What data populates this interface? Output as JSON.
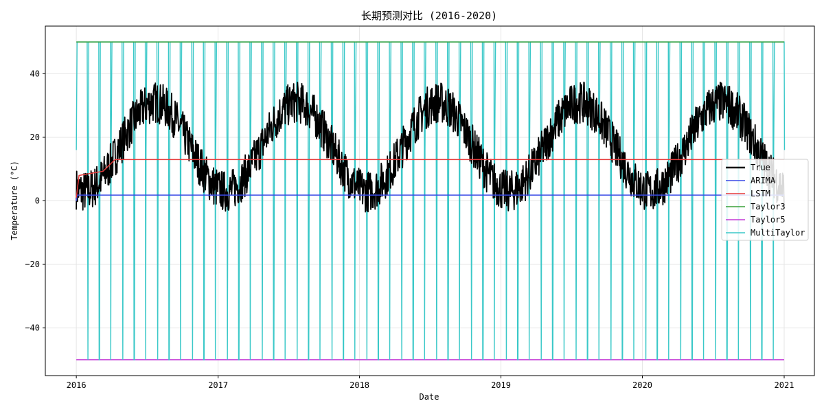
{
  "chart_data": {
    "type": "line",
    "title": "长期预测对比 (2016-2020)",
    "xlabel": "Date",
    "ylabel": "Temperature (°C)",
    "x_range": [
      "2016-01-01",
      "2021-01-01"
    ],
    "xlim": [
      "2015-10-13",
      "2021-03-20"
    ],
    "ylim": [
      -55,
      55
    ],
    "x_ticks": [
      "2016",
      "2017",
      "2018",
      "2019",
      "2020",
      "2021"
    ],
    "y_ticks": [
      -40,
      -20,
      0,
      20,
      40
    ],
    "grid": true,
    "legend_position": "right",
    "series": [
      {
        "name": "True",
        "color": "#000000",
        "description": "daily temperature, seasonal cycle",
        "approx_seasonal_min": [
          -10,
          -12,
          -10,
          -10,
          -8
        ],
        "approx_seasonal_max": [
          38,
          38,
          38,
          36,
          36
        ],
        "mean": 17,
        "amplitude": 14,
        "noise": 6
      },
      {
        "name": "ARIMA",
        "color": "#3a4ae6",
        "x": [
          "2016-01-01",
          "2016-01-03",
          "2021-01-01"
        ],
        "values": [
          0,
          1.8,
          1.8
        ]
      },
      {
        "name": "LSTM",
        "color": "#e63a3a",
        "x": [
          "2016-01-01",
          "2016-01-08",
          "2016-02-15",
          "2016-03-10",
          "2016-04-10",
          "2021-01-01"
        ],
        "values": [
          1,
          8,
          8.8,
          9.3,
          13,
          13
        ]
      },
      {
        "name": "Taylor3",
        "color": "#3aa03a",
        "values_constant": 50
      },
      {
        "name": "Taylor5",
        "color": "#c43ad6",
        "values_constant": -50
      },
      {
        "name": "MultiTaylor",
        "color": "#3ac8c8",
        "description": "oscillates between 50 and a low value each cycle",
        "high": 50,
        "low_values": [
          16,
          -50
        ],
        "period_days": 30
      }
    ]
  }
}
